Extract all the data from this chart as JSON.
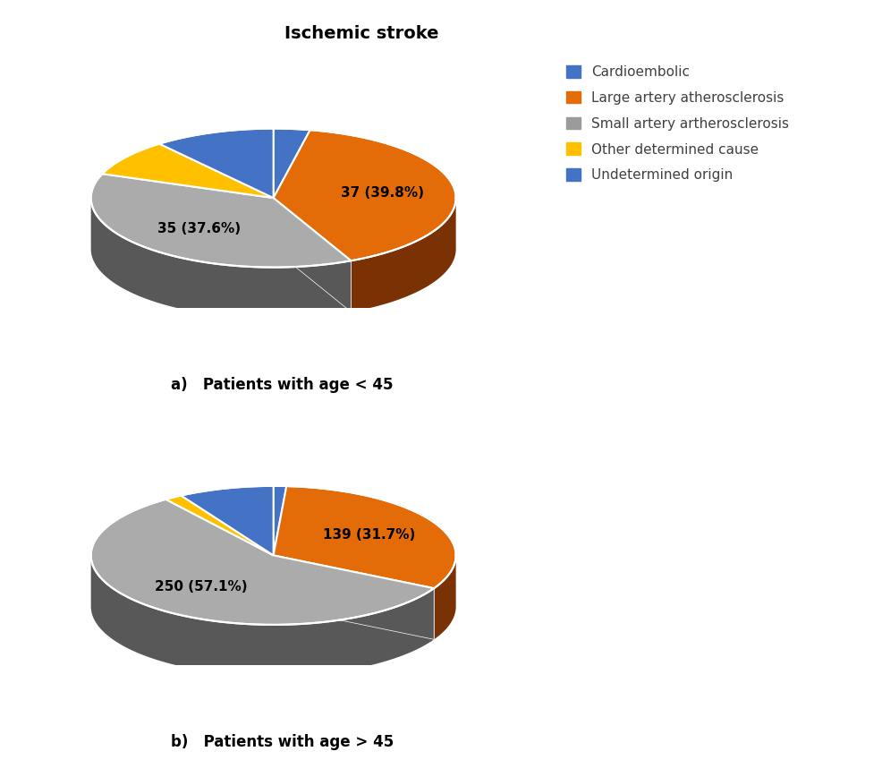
{
  "title": "Ischemic stroke",
  "title_fontsize": 14,
  "title_fontweight": "bold",
  "chart_a_label": "a)   Patients with age < 45",
  "chart_b_label": "b)   Patients with age > 45",
  "caption_fontsize": 12,
  "legend_labels": [
    "Cardioembolic",
    "Large artery atherosclerosis",
    "Small artery artherosclerosis",
    "Other determined cause",
    "Undetermined origin"
  ],
  "legend_colors": [
    "#4472C4",
    "#E36C09",
    "#9B9B9B",
    "#FFC000",
    "#4472C4"
  ],
  "chart_a_values": [
    3,
    37,
    35,
    8,
    10
  ],
  "chart_a_labels": [
    "",
    "37 (39.8%)",
    "35 (37.6%)",
    "",
    ""
  ],
  "chart_a_colors": [
    "#4472C4",
    "#E36C09",
    "#ABABAB",
    "#FFC000",
    "#4472C4"
  ],
  "chart_a_shadow": [
    "#2A3F7A",
    "#7A3205",
    "#585858",
    "#9A7400",
    "#2A3F7A"
  ],
  "chart_b_values": [
    5,
    139,
    250,
    7,
    37
  ],
  "chart_b_labels": [
    "",
    "139 (31.7%)",
    "250 (57.1%)",
    "",
    ""
  ],
  "chart_b_colors": [
    "#4472C4",
    "#E36C09",
    "#ABABAB",
    "#FFC000",
    "#4472C4"
  ],
  "chart_b_shadow": [
    "#2A3F7A",
    "#7A3205",
    "#585858",
    "#9A7400",
    "#2A3F7A"
  ],
  "background_color": "#FFFFFF",
  "label_fontsize": 11,
  "legend_fontsize": 11,
  "startangle_a": 90,
  "startangle_b": 90
}
